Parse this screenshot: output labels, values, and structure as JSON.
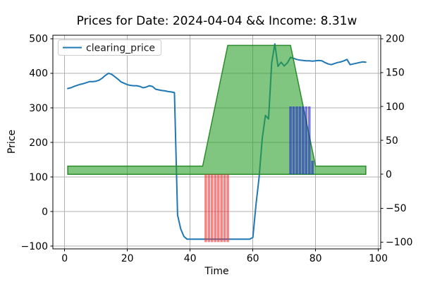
{
  "chart_data": {
    "type": "line",
    "title": "Prices for Date: 2024-04-04 && Income: 8.31w",
    "xlabel": "Time",
    "ylabel": "Price",
    "xlim": [
      -3.75,
      100.75
    ],
    "x_ticks": [
      0,
      20,
      40,
      60,
      80,
      100
    ],
    "left_axis": {
      "lim": [
        -108,
        510
      ],
      "ticks": [
        -100,
        0,
        100,
        200,
        300,
        400,
        500
      ]
    },
    "right_axis": {
      "lim": [
        -110,
        205
      ],
      "ticks": [
        -100,
        -50,
        0,
        50,
        100,
        150,
        200
      ]
    },
    "grid": true,
    "grid_color": "#b0b0b0",
    "spine_color": "#000000",
    "legend": {
      "position": "upper left",
      "entries": [
        {
          "label": "clearing_price",
          "color": "#1f77b4"
        }
      ]
    },
    "series": [
      {
        "name": "clearing_price",
        "axis": "left",
        "color": "#1f77b4",
        "line_width": 2,
        "points": [
          [
            1,
            356
          ],
          [
            2,
            358
          ],
          [
            3,
            362
          ],
          [
            4,
            365
          ],
          [
            5,
            368
          ],
          [
            6,
            370
          ],
          [
            7,
            373
          ],
          [
            8,
            376
          ],
          [
            9,
            376
          ],
          [
            10,
            377
          ],
          [
            11,
            380
          ],
          [
            12,
            386
          ],
          [
            13,
            394
          ],
          [
            14,
            400
          ],
          [
            15,
            397
          ],
          [
            16,
            390
          ],
          [
            17,
            383
          ],
          [
            18,
            375
          ],
          [
            19,
            371
          ],
          [
            20,
            367
          ],
          [
            21,
            365
          ],
          [
            22,
            364
          ],
          [
            23,
            364
          ],
          [
            24,
            362
          ],
          [
            25,
            358
          ],
          [
            26,
            360
          ],
          [
            27,
            364
          ],
          [
            28,
            362
          ],
          [
            29,
            354
          ],
          [
            30,
            352
          ],
          [
            31,
            350
          ],
          [
            32,
            349
          ],
          [
            33,
            347
          ],
          [
            34,
            346
          ],
          [
            35,
            344
          ],
          [
            36,
            -10
          ],
          [
            37,
            -50
          ],
          [
            38,
            -72
          ],
          [
            39,
            -80
          ],
          [
            40,
            -80
          ],
          [
            41,
            -80
          ],
          [
            42,
            -80
          ],
          [
            43,
            -80
          ],
          [
            44,
            -80
          ],
          [
            45,
            -80
          ],
          [
            46,
            -80
          ],
          [
            47,
            -80
          ],
          [
            48,
            -80
          ],
          [
            49,
            -80
          ],
          [
            50,
            -80
          ],
          [
            51,
            -80
          ],
          [
            52,
            -80
          ],
          [
            53,
            -80
          ],
          [
            54,
            -80
          ],
          [
            55,
            -80
          ],
          [
            56,
            -80
          ],
          [
            57,
            -80
          ],
          [
            58,
            -80
          ],
          [
            59,
            -80
          ],
          [
            60,
            -75
          ],
          [
            61,
            20
          ],
          [
            62,
            100
          ],
          [
            63,
            212
          ],
          [
            64,
            278
          ],
          [
            65,
            268
          ],
          [
            66,
            430
          ],
          [
            67,
            485
          ],
          [
            68,
            420
          ],
          [
            69,
            432
          ],
          [
            70,
            421
          ],
          [
            71,
            430
          ],
          [
            72,
            446
          ],
          [
            73,
            443
          ],
          [
            74,
            440
          ],
          [
            75,
            438
          ],
          [
            76,
            437
          ],
          [
            77,
            436
          ],
          [
            78,
            436
          ],
          [
            79,
            435
          ],
          [
            80,
            436
          ],
          [
            81,
            437
          ],
          [
            82,
            436
          ],
          [
            83,
            431
          ],
          [
            84,
            427
          ],
          [
            85,
            425
          ],
          [
            86,
            428
          ],
          [
            87,
            431
          ],
          [
            88,
            433
          ],
          [
            89,
            436
          ],
          [
            90,
            440
          ],
          [
            91,
            425
          ],
          [
            92,
            427
          ],
          [
            93,
            429
          ],
          [
            94,
            431
          ],
          [
            95,
            433
          ],
          [
            96,
            432
          ]
        ]
      }
    ],
    "green_area": {
      "axis": "right",
      "fill": "#2ca02c",
      "fill_opacity": 0.6,
      "edge": "#2a8c2a",
      "edge_width": 1.5,
      "baseline": 0,
      "points": [
        [
          1,
          12
        ],
        [
          44,
          12
        ],
        [
          52,
          190
        ],
        [
          72,
          190
        ],
        [
          80,
          12
        ],
        [
          96,
          12
        ]
      ]
    },
    "red_bars": {
      "axis": "right",
      "fill": "#ee3333",
      "fill_opacity": 0.6,
      "width": 0.8,
      "bars": [
        [
          45,
          -100
        ],
        [
          46,
          -100
        ],
        [
          47,
          -100
        ],
        [
          48,
          -100
        ],
        [
          49,
          -100
        ],
        [
          50,
          -100
        ],
        [
          51,
          -100
        ],
        [
          52,
          -100
        ]
      ]
    },
    "blue_bars": {
      "axis": "right",
      "fill": "#2222d6",
      "fill_opacity": 0.6,
      "width": 0.8,
      "bars": [
        [
          72,
          100
        ],
        [
          73,
          100
        ],
        [
          74,
          100
        ],
        [
          75,
          100
        ],
        [
          76,
          100
        ],
        [
          77,
          100
        ],
        [
          78,
          100
        ],
        [
          79,
          20
        ]
      ]
    }
  }
}
